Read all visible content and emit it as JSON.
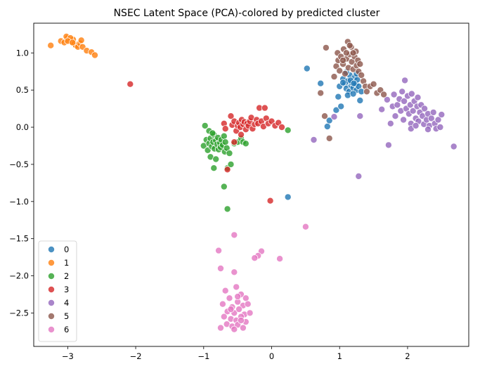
{
  "chart_data": {
    "type": "scatter",
    "title": "NSEC Latent Space (PCA)-colored by predicted cluster",
    "xlabel": "",
    "ylabel": "",
    "xlim": [
      -3.5,
      2.9
    ],
    "ylim": [
      -2.95,
      1.4
    ],
    "xticks": [
      -3,
      -2,
      -1,
      0,
      1,
      2
    ],
    "yticks": [
      1.0,
      0.5,
      0.0,
      -0.5,
      -1.0,
      -1.5,
      -2.0,
      -2.5
    ],
    "xtick_labels": [
      "−3",
      "−2",
      "−1",
      "0",
      "1",
      "2"
    ],
    "ytick_labels": [
      "1.0",
      "0.5",
      "0.0",
      "−0.5",
      "−1.0",
      "−1.5",
      "−2.0",
      "−2.5"
    ],
    "grid": false,
    "legend_placement": "lower-left",
    "series": [
      {
        "name": "0",
        "color": "#1f77b4",
        "points": [
          [
            0.52,
            0.79
          ],
          [
            0.72,
            0.59
          ],
          [
            0.82,
            0.01
          ],
          [
            0.85,
            0.09
          ],
          [
            0.95,
            0.23
          ],
          [
            0.98,
            0.41
          ],
          [
            1.0,
            0.55
          ],
          [
            1.02,
            0.28
          ],
          [
            1.05,
            0.65
          ],
          [
            1.08,
            0.58
          ],
          [
            1.1,
            0.52
          ],
          [
            1.12,
            0.62
          ],
          [
            1.14,
            0.48
          ],
          [
            1.15,
            0.7
          ],
          [
            1.17,
            0.56
          ],
          [
            1.18,
            0.6
          ],
          [
            1.2,
            0.53
          ],
          [
            1.22,
            0.67
          ],
          [
            1.24,
            0.58
          ],
          [
            1.25,
            0.5
          ],
          [
            1.26,
            0.64
          ],
          [
            1.28,
            0.55
          ],
          [
            1.3,
            0.36
          ],
          [
            1.32,
            0.48
          ],
          [
            1.12,
            0.43
          ],
          [
            1.2,
            0.45
          ],
          [
            1.05,
            0.6
          ],
          [
            1.1,
            0.74
          ],
          [
            1.25,
            0.72
          ],
          [
            1.16,
            0.63
          ],
          [
            1.21,
            0.59
          ],
          [
            0.24,
            -0.94
          ]
        ]
      },
      {
        "name": "1",
        "color": "#ff7f0e",
        "points": [
          [
            -3.25,
            1.1
          ],
          [
            -3.1,
            1.16
          ],
          [
            -3.05,
            1.14
          ],
          [
            -3.0,
            1.2
          ],
          [
            -2.98,
            1.17
          ],
          [
            -2.95,
            1.15
          ],
          [
            -2.92,
            1.18
          ],
          [
            -2.9,
            1.12
          ],
          [
            -2.88,
            1.1
          ],
          [
            -2.85,
            1.08
          ],
          [
            -2.82,
            1.13
          ],
          [
            -2.8,
            1.17
          ],
          [
            -2.78,
            1.08
          ],
          [
            -2.72,
            1.03
          ],
          [
            -2.65,
            1.01
          ],
          [
            -2.6,
            0.97
          ],
          [
            -3.02,
            1.22
          ],
          [
            -2.96,
            1.2
          ],
          [
            -3.0,
            1.16
          ],
          [
            -2.93,
            1.14
          ]
        ]
      },
      {
        "name": "2",
        "color": "#2ca02c",
        "points": [
          [
            -1.0,
            -0.25
          ],
          [
            -0.98,
            0.02
          ],
          [
            -0.96,
            -0.17
          ],
          [
            -0.94,
            -0.31
          ],
          [
            -0.92,
            -0.22
          ],
          [
            -0.9,
            -0.15
          ],
          [
            -0.88,
            -0.26
          ],
          [
            -0.86,
            -0.2
          ],
          [
            -0.85,
            -0.1
          ],
          [
            -0.84,
            -0.29
          ],
          [
            -0.82,
            -0.18
          ],
          [
            -0.8,
            -0.23
          ],
          [
            -0.79,
            -0.14
          ],
          [
            -0.78,
            -0.3
          ],
          [
            -0.76,
            -0.21
          ],
          [
            -0.75,
            -0.27
          ],
          [
            -0.74,
            -0.17
          ],
          [
            -0.72,
            -0.24
          ],
          [
            -0.7,
            -0.12
          ],
          [
            -0.69,
            -0.33
          ],
          [
            -0.68,
            -0.2
          ],
          [
            -0.66,
            -0.28
          ],
          [
            -0.65,
            -0.55
          ],
          [
            -0.62,
            -0.35
          ],
          [
            -0.6,
            -0.5
          ],
          [
            -0.55,
            -0.22
          ],
          [
            -0.5,
            -0.2
          ],
          [
            -0.45,
            -0.15
          ],
          [
            -0.42,
            -0.2
          ],
          [
            -0.38,
            -0.22
          ],
          [
            -0.7,
            -0.8
          ],
          [
            -0.65,
            -1.1
          ],
          [
            -0.85,
            -0.55
          ],
          [
            -0.9,
            -0.4
          ],
          [
            -0.82,
            -0.43
          ],
          [
            0.24,
            -0.04
          ],
          [
            -0.92,
            -0.05
          ],
          [
            -0.87,
            -0.08
          ]
        ]
      },
      {
        "name": "3",
        "color": "#d62728",
        "points": [
          [
            -2.08,
            0.58
          ],
          [
            -0.7,
            0.05
          ],
          [
            -0.68,
            -0.02
          ],
          [
            -0.6,
            0.15
          ],
          [
            -0.58,
            0.03
          ],
          [
            -0.55,
            0.08
          ],
          [
            -0.52,
            -0.05
          ],
          [
            -0.5,
            0.02
          ],
          [
            -0.48,
            0.06
          ],
          [
            -0.46,
            0.0
          ],
          [
            -0.44,
            0.1
          ],
          [
            -0.42,
            0.04
          ],
          [
            -0.4,
            0.07
          ],
          [
            -0.38,
            -0.03
          ],
          [
            -0.36,
            0.05
          ],
          [
            -0.34,
            0.02
          ],
          [
            -0.32,
            0.08
          ],
          [
            -0.3,
            0.13
          ],
          [
            -0.28,
            -0.02
          ],
          [
            -0.25,
            0.04
          ],
          [
            -0.22,
            0.1
          ],
          [
            -0.2,
            0.05
          ],
          [
            -0.18,
            0.26
          ],
          [
            -0.15,
            0.08
          ],
          [
            -0.12,
            0.01
          ],
          [
            -0.1,
            0.26
          ],
          [
            -0.08,
            0.12
          ],
          [
            -0.05,
            0.05
          ],
          [
            0.0,
            0.08
          ],
          [
            0.05,
            0.02
          ],
          [
            0.1,
            0.06
          ],
          [
            0.15,
            0.0
          ],
          [
            -0.55,
            -0.2
          ],
          [
            -0.45,
            -0.1
          ],
          [
            -0.02,
            -0.99
          ],
          [
            -0.65,
            -0.57
          ]
        ]
      },
      {
        "name": "4",
        "color": "#9467bd",
        "points": [
          [
            0.62,
            -0.17
          ],
          [
            0.92,
            0.14
          ],
          [
            1.3,
            0.15
          ],
          [
            1.28,
            -0.66
          ],
          [
            1.62,
            0.24
          ],
          [
            1.7,
            0.37
          ],
          [
            1.72,
            -0.24
          ],
          [
            1.75,
            0.05
          ],
          [
            1.78,
            0.28
          ],
          [
            1.8,
            0.44
          ],
          [
            1.82,
            0.15
          ],
          [
            1.85,
            0.3
          ],
          [
            1.88,
            0.38
          ],
          [
            1.9,
            0.22
          ],
          [
            1.92,
            0.48
          ],
          [
            1.94,
            0.1
          ],
          [
            1.95,
            0.35
          ],
          [
            1.96,
            0.63
          ],
          [
            1.98,
            0.25
          ],
          [
            2.0,
            0.42
          ],
          [
            2.02,
            0.18
          ],
          [
            2.04,
            0.3
          ],
          [
            2.05,
            0.05
          ],
          [
            2.06,
            0.45
          ],
          [
            2.08,
            0.22
          ],
          [
            2.1,
            0.35
          ],
          [
            2.12,
            0.12
          ],
          [
            2.14,
            0.28
          ],
          [
            2.15,
            0.4
          ],
          [
            2.16,
            0.08
          ],
          [
            2.18,
            0.2
          ],
          [
            2.2,
            0.3
          ],
          [
            2.22,
            0.15
          ],
          [
            2.24,
            0.04
          ],
          [
            2.25,
            0.25
          ],
          [
            2.28,
            0.1
          ],
          [
            2.3,
            0.18
          ],
          [
            2.32,
            0.02
          ],
          [
            2.35,
            0.12
          ],
          [
            2.38,
            0.2
          ],
          [
            2.4,
            0.05
          ],
          [
            2.42,
            -0.02
          ],
          [
            2.45,
            0.1
          ],
          [
            2.48,
            0.0
          ],
          [
            2.5,
            0.17
          ],
          [
            2.68,
            -0.26
          ],
          [
            2.3,
            -0.03
          ],
          [
            2.05,
            -0.02
          ],
          [
            2.12,
            0.02
          ]
        ]
      },
      {
        "name": "5",
        "color": "#8c564b",
        "points": [
          [
            0.72,
            0.46
          ],
          [
            0.78,
            0.15
          ],
          [
            0.8,
            1.07
          ],
          [
            0.85,
            -0.15
          ],
          [
            0.92,
            0.68
          ],
          [
            0.95,
            0.82
          ],
          [
            0.97,
            1.0
          ],
          [
            0.98,
            0.9
          ],
          [
            1.0,
            0.76
          ],
          [
            1.02,
            0.95
          ],
          [
            1.05,
            0.85
          ],
          [
            1.06,
            1.05
          ],
          [
            1.08,
            0.72
          ],
          [
            1.1,
            0.92
          ],
          [
            1.12,
            1.15
          ],
          [
            1.13,
            0.8
          ],
          [
            1.15,
            0.98
          ],
          [
            1.17,
            1.08
          ],
          [
            1.18,
            0.88
          ],
          [
            1.2,
            0.78
          ],
          [
            1.22,
            0.95
          ],
          [
            1.24,
            1.02
          ],
          [
            1.25,
            0.83
          ],
          [
            1.27,
            0.9
          ],
          [
            1.28,
            0.75
          ],
          [
            1.3,
            0.85
          ],
          [
            1.32,
            0.7
          ],
          [
            1.35,
            0.62
          ],
          [
            1.38,
            0.55
          ],
          [
            1.4,
            0.48
          ],
          [
            1.45,
            0.55
          ],
          [
            1.5,
            0.58
          ],
          [
            1.55,
            0.46
          ],
          [
            1.6,
            0.5
          ],
          [
            1.65,
            0.44
          ],
          [
            1.15,
            1.1
          ],
          [
            1.1,
            1.0
          ],
          [
            1.2,
            1.0
          ],
          [
            1.05,
            0.9
          ]
        ]
      },
      {
        "name": "6",
        "color": "#e377c2",
        "points": [
          [
            0.5,
            -1.34
          ],
          [
            -0.55,
            -1.45
          ],
          [
            -0.78,
            -1.66
          ],
          [
            -0.15,
            -1.67
          ],
          [
            -0.2,
            -1.73
          ],
          [
            -0.25,
            -1.76
          ],
          [
            0.12,
            -1.77
          ],
          [
            -0.75,
            -1.9
          ],
          [
            -0.55,
            -1.95
          ],
          [
            -0.52,
            -2.15
          ],
          [
            -0.68,
            -2.2
          ],
          [
            -0.62,
            -2.3
          ],
          [
            -0.45,
            -2.25
          ],
          [
            -0.38,
            -2.3
          ],
          [
            -0.72,
            -2.38
          ],
          [
            -0.58,
            -2.42
          ],
          [
            -0.5,
            -2.35
          ],
          [
            -0.42,
            -2.4
          ],
          [
            -0.35,
            -2.38
          ],
          [
            -0.65,
            -2.48
          ],
          [
            -0.55,
            -2.5
          ],
          [
            -0.48,
            -2.45
          ],
          [
            -0.4,
            -2.52
          ],
          [
            -0.32,
            -2.5
          ],
          [
            -0.7,
            -2.55
          ],
          [
            -0.6,
            -2.58
          ],
          [
            -0.52,
            -2.6
          ],
          [
            -0.45,
            -2.55
          ],
          [
            -0.38,
            -2.62
          ],
          [
            -0.66,
            -2.65
          ],
          [
            -0.58,
            -2.68
          ],
          [
            -0.5,
            -2.66
          ],
          [
            -0.42,
            -2.7
          ],
          [
            -0.75,
            -2.7
          ],
          [
            -0.55,
            -2.72
          ],
          [
            -0.45,
            -2.6
          ],
          [
            -0.6,
            -2.45
          ],
          [
            -0.5,
            -2.28
          ]
        ]
      }
    ]
  }
}
